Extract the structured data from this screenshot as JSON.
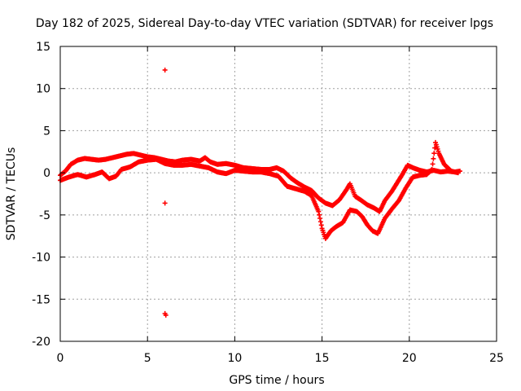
{
  "chart_data": {
    "type": "scatter",
    "title": "Day 182 of 2025, Sidereal Day-to-day VTEC variation (SDTVAR) for receiver lpgs",
    "xlabel": "GPS time / hours",
    "ylabel": "SDTVAR / TECUs",
    "xlim": [
      0,
      25
    ],
    "ylim": [
      -20,
      15
    ],
    "x_ticks": [
      0,
      5,
      10,
      15,
      20,
      25
    ],
    "y_ticks": [
      -20,
      -15,
      -10,
      -5,
      0,
      5,
      10,
      15
    ],
    "grid": true,
    "marker": "+",
    "color": "#ff0000",
    "series": [
      {
        "name": "SDTVAR",
        "points_upper": [
          [
            0.0,
            -0.3
          ],
          [
            0.3,
            0.2
          ],
          [
            0.6,
            1.0
          ],
          [
            1.0,
            1.5
          ],
          [
            1.4,
            1.7
          ],
          [
            1.8,
            1.6
          ],
          [
            2.2,
            1.5
          ],
          [
            2.6,
            1.6
          ],
          [
            3.0,
            1.8
          ],
          [
            3.4,
            2.0
          ],
          [
            3.8,
            2.2
          ],
          [
            4.2,
            2.3
          ],
          [
            4.6,
            2.1
          ],
          [
            5.0,
            1.9
          ],
          [
            5.4,
            1.8
          ],
          [
            5.8,
            1.6
          ],
          [
            6.2,
            1.4
          ],
          [
            6.6,
            1.3
          ],
          [
            7.0,
            1.5
          ],
          [
            7.5,
            1.6
          ],
          [
            8.0,
            1.4
          ],
          [
            8.3,
            1.8
          ],
          [
            8.6,
            1.3
          ],
          [
            9.0,
            1.0
          ],
          [
            9.5,
            1.1
          ],
          [
            10.0,
            0.9
          ],
          [
            10.5,
            0.6
          ],
          [
            11.0,
            0.5
          ],
          [
            11.5,
            0.4
          ],
          [
            12.0,
            0.4
          ],
          [
            12.4,
            0.6
          ],
          [
            12.8,
            0.2
          ],
          [
            13.2,
            -0.6
          ],
          [
            13.6,
            -1.2
          ],
          [
            14.0,
            -1.7
          ],
          [
            14.4,
            -2.1
          ],
          [
            14.8,
            -3.0
          ],
          [
            15.2,
            -3.6
          ],
          [
            15.6,
            -3.9
          ],
          [
            16.0,
            -3.2
          ],
          [
            16.4,
            -2.0
          ],
          [
            16.6,
            -1.3
          ],
          [
            16.9,
            -2.8
          ],
          [
            17.2,
            -3.2
          ],
          [
            17.6,
            -3.8
          ],
          [
            18.0,
            -4.2
          ],
          [
            18.3,
            -4.6
          ],
          [
            18.6,
            -3.3
          ],
          [
            19.0,
            -2.2
          ],
          [
            19.3,
            -1.2
          ],
          [
            19.6,
            -0.2
          ],
          [
            19.9,
            0.9
          ],
          [
            20.2,
            0.6
          ],
          [
            20.6,
            0.3
          ],
          [
            21.0,
            0.1
          ],
          [
            21.4,
            0.3
          ],
          [
            21.8,
            0.1
          ],
          [
            22.2,
            0.2
          ],
          [
            22.6,
            0.1
          ],
          [
            22.9,
            0.2
          ]
        ],
        "points_lower": [
          [
            0.0,
            -0.9
          ],
          [
            0.5,
            -0.5
          ],
          [
            1.0,
            -0.2
          ],
          [
            1.5,
            -0.5
          ],
          [
            2.0,
            -0.2
          ],
          [
            2.4,
            0.1
          ],
          [
            2.8,
            -0.7
          ],
          [
            3.2,
            -0.4
          ],
          [
            3.5,
            0.4
          ],
          [
            4.0,
            0.7
          ],
          [
            4.5,
            1.3
          ],
          [
            5.0,
            1.5
          ],
          [
            5.5,
            1.6
          ],
          [
            6.0,
            1.1
          ],
          [
            6.5,
            0.9
          ],
          [
            7.0,
            0.9
          ],
          [
            7.5,
            1.0
          ],
          [
            8.0,
            0.8
          ],
          [
            8.5,
            0.6
          ],
          [
            9.0,
            0.1
          ],
          [
            9.5,
            -0.1
          ],
          [
            10.0,
            0.3
          ],
          [
            10.5,
            0.2
          ],
          [
            11.0,
            0.1
          ],
          [
            11.5,
            0.1
          ],
          [
            12.0,
            -0.1
          ],
          [
            12.5,
            -0.4
          ],
          [
            13.0,
            -1.6
          ],
          [
            13.5,
            -1.9
          ],
          [
            14.0,
            -2.2
          ],
          [
            14.4,
            -2.7
          ],
          [
            14.8,
            -4.6
          ],
          [
            15.0,
            -6.6
          ],
          [
            15.2,
            -7.8
          ],
          [
            15.5,
            -6.9
          ],
          [
            15.8,
            -6.4
          ],
          [
            16.2,
            -5.9
          ],
          [
            16.6,
            -4.4
          ],
          [
            17.0,
            -4.6
          ],
          [
            17.3,
            -5.2
          ],
          [
            17.6,
            -6.2
          ],
          [
            17.9,
            -6.9
          ],
          [
            18.2,
            -7.2
          ],
          [
            18.6,
            -5.4
          ],
          [
            19.0,
            -4.3
          ],
          [
            19.4,
            -3.3
          ],
          [
            19.8,
            -1.8
          ],
          [
            20.2,
            -0.5
          ],
          [
            20.6,
            -0.3
          ],
          [
            21.0,
            -0.2
          ],
          [
            21.3,
            0.4
          ],
          [
            21.5,
            3.6
          ],
          [
            21.7,
            2.3
          ],
          [
            22.0,
            1.0
          ],
          [
            22.4,
            0.2
          ],
          [
            22.8,
            0.0
          ]
        ],
        "outliers": [
          [
            6.0,
            12.2
          ],
          [
            6.0,
            -3.6
          ],
          [
            6.0,
            -16.7
          ],
          [
            6.05,
            -16.9
          ]
        ]
      }
    ]
  }
}
